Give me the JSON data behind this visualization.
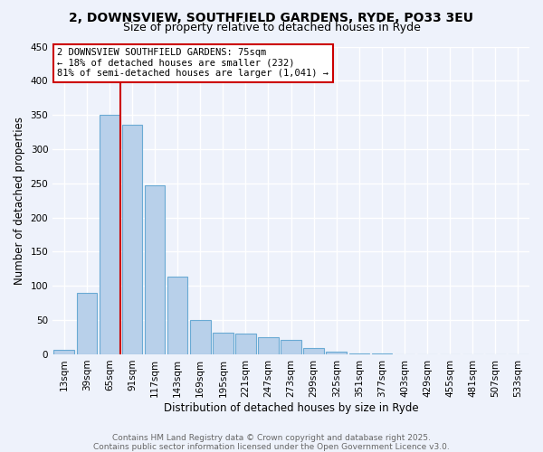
{
  "title1": "2, DOWNSVIEW, SOUTHFIELD GARDENS, RYDE, PO33 3EU",
  "title2": "Size of property relative to detached houses in Ryde",
  "xlabel": "Distribution of detached houses by size in Ryde",
  "ylabel": "Number of detached properties",
  "bar_values": [
    6,
    90,
    350,
    336,
    247,
    113,
    50,
    32,
    30,
    25,
    21,
    9,
    4,
    1,
    1,
    0,
    0,
    0,
    0,
    0,
    0
  ],
  "bar_labels": [
    "13sqm",
    "39sqm",
    "65sqm",
    "91sqm",
    "117sqm",
    "143sqm",
    "169sqm",
    "195sqm",
    "221sqm",
    "247sqm",
    "273sqm",
    "299sqm",
    "325sqm",
    "351sqm",
    "377sqm",
    "403sqm",
    "429sqm",
    "455sqm",
    "481sqm",
    "507sqm",
    "533sqm"
  ],
  "bar_color": "#b8d0ea",
  "bar_edge_color": "#6aaad4",
  "vline_x": 2.5,
  "vline_color": "#cc0000",
  "annotation_box_text": "2 DOWNSVIEW SOUTHFIELD GARDENS: 75sqm\n← 18% of detached houses are smaller (232)\n81% of semi-detached houses are larger (1,041) →",
  "ylim": [
    0,
    450
  ],
  "yticks": [
    0,
    50,
    100,
    150,
    200,
    250,
    300,
    350,
    400,
    450
  ],
  "background_color": "#eef2fb",
  "grid_color": "#ffffff",
  "footer_text": "Contains HM Land Registry data © Crown copyright and database right 2025.\nContains public sector information licensed under the Open Government Licence v3.0.",
  "title_fontsize": 10,
  "subtitle_fontsize": 9,
  "axis_label_fontsize": 8.5,
  "tick_fontsize": 7.5,
  "annotation_fontsize": 7.5,
  "footer_fontsize": 6.5
}
